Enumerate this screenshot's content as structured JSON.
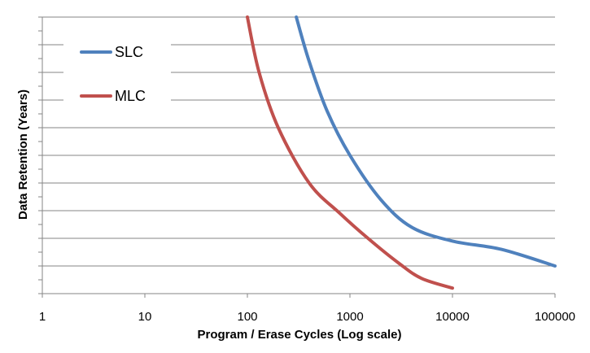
{
  "chart_data": {
    "type": "line",
    "xlabel": "Program / Erase Cycles (Log scale)",
    "ylabel": "Data Retention (Years)",
    "x_scale": "log",
    "xlim": [
      1,
      100000
    ],
    "x_ticks": [
      1,
      10,
      100,
      1000,
      10000,
      100000
    ],
    "x_tick_labels": [
      "1",
      "10",
      "100",
      "1000",
      "10000",
      "100000"
    ],
    "y_tick_labels": [],
    "grid": "horizontal",
    "legend": "top-left",
    "series": [
      {
        "name": "SLC",
        "color": "#4f81bd",
        "points": [
          [
            300,
            10
          ],
          [
            400,
            8.4
          ],
          [
            600,
            6.6
          ],
          [
            1000,
            5.0
          ],
          [
            2000,
            3.4
          ],
          [
            4000,
            2.4
          ],
          [
            10000,
            1.9
          ],
          [
            30000,
            1.6
          ],
          [
            100000,
            1.0
          ]
        ]
      },
      {
        "name": "MLC",
        "color": "#c0504d",
        "points": [
          [
            100,
            10
          ],
          [
            130,
            8.0
          ],
          [
            200,
            6.0
          ],
          [
            400,
            4.0
          ],
          [
            800,
            2.9
          ],
          [
            1500,
            2.0
          ],
          [
            3000,
            1.1
          ],
          [
            5000,
            0.55
          ],
          [
            10000,
            0.2
          ]
        ]
      }
    ]
  }
}
